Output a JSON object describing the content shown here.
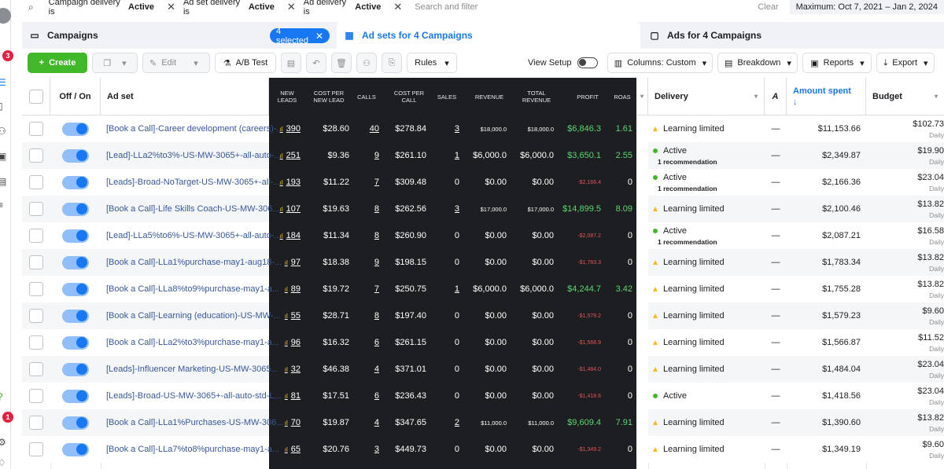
{
  "filters": {
    "chips": [
      {
        "prefix": "Campaign delivery is",
        "value": "Active"
      },
      {
        "prefix": "Ad set delivery is",
        "value": "Active"
      },
      {
        "prefix": "Ad delivery is",
        "value": "Active"
      }
    ],
    "search_placeholder": "Search and filter",
    "clear_label": "Clear",
    "date_range": "Maximum: Oct 7, 2021 – Jan 2, 2024"
  },
  "sidebar": {
    "badges": [
      "3",
      "1"
    ]
  },
  "tabs": {
    "campaigns": "Campaigns",
    "selected_pill": "4 selected",
    "adsets": "Ad sets for 4 Campaigns",
    "ads": "Ads for 4 Campaigns"
  },
  "toolbar": {
    "create": "Create",
    "edit": "Edit",
    "ab_test": "A/B Test",
    "rules": "Rules",
    "view_setup": "View Setup",
    "columns": "Columns: Custom",
    "breakdown": "Breakdown",
    "reports": "Reports",
    "export": "Export"
  },
  "columns": {
    "off_on": "Off / On",
    "ad_set": "Ad set",
    "new_leads": "NEW LEADS",
    "cost_per_new_lead": "COST PER NEW LEAD",
    "calls": "CALLS",
    "cost_per_call": "COST PER CALL",
    "sales": "SALES",
    "revenue": "REVENUE",
    "total_revenue": "TOTAL REVENUE",
    "profit": "PROFIT",
    "roas": "ROAS",
    "delivery": "Delivery",
    "attribution": "A",
    "amount_spent": "Amount spent",
    "budget": "Budget"
  },
  "colors": {
    "accent": "#1877f2",
    "create": "#42b72a",
    "positive": "#5ed672",
    "negative": "#e0555b",
    "dark_panel": "#1c1e21"
  },
  "rows": [
    {
      "name": "[Book a Call]-Career development (careers)-...",
      "leads": "390",
      "cpl": "$28.60",
      "calls": "40",
      "cpc": "$278.84",
      "sales": "3",
      "revenue": "$18,000.0",
      "total": "$18,000.0",
      "profit": "$6,846.3",
      "roas": "1.61",
      "delivery": "Learning limited",
      "rec": "",
      "attr": "—",
      "spent": "$11,153.66",
      "budget": "$102.73",
      "daily": "Daily"
    },
    {
      "name": "[Lead]-LLa2%to3%-US-MW-3065+-all-auto-...",
      "leads": "251",
      "cpl": "$9.36",
      "calls": "9",
      "cpc": "$261.10",
      "sales": "1",
      "revenue": "$6,000.0",
      "total": "$6,000.0",
      "profit": "$3,650.1",
      "roas": "2.55",
      "delivery": "Active",
      "rec": "1 recommendation",
      "attr": "—",
      "spent": "$2,349.87",
      "budget": "$19.90",
      "daily": "Daily"
    },
    {
      "name": "[Leads]-Broad-NoTarget-US-MW-3065+-all-...",
      "leads": "193",
      "cpl": "$11.22",
      "calls": "7",
      "cpc": "$309.48",
      "sales": "0",
      "revenue": "$0.00",
      "total": "$0.00",
      "profit": "-$2,166.4",
      "roas": "0",
      "delivery": "Active",
      "rec": "1 recommendation",
      "attr": "—",
      "spent": "$2,166.36",
      "budget": "$23.04",
      "daily": "Daily"
    },
    {
      "name": "[Book a Call]-Life Skills Coach-US-MW-306...",
      "leads": "107",
      "cpl": "$19.63",
      "calls": "8",
      "cpc": "$262.56",
      "sales": "3",
      "revenue": "$17,000.0",
      "total": "$17,000.0",
      "profit": "$14,899.5",
      "roas": "8.09",
      "delivery": "Learning limited",
      "rec": "",
      "attr": "—",
      "spent": "$2,100.46",
      "budget": "$13.82",
      "daily": "Daily"
    },
    {
      "name": "[Lead]-LLa5%to6%-US-MW-3065+-all-auto-...",
      "leads": "184",
      "cpl": "$11.34",
      "calls": "8",
      "cpc": "$260.90",
      "sales": "0",
      "revenue": "$0.00",
      "total": "$0.00",
      "profit": "-$2,087.2",
      "roas": "0",
      "delivery": "Active",
      "rec": "1 recommendation",
      "attr": "—",
      "spent": "$2,087.21",
      "budget": "$16.58",
      "daily": "Daily"
    },
    {
      "name": "[Book a Call]-LLa1%purchase-may1-aug18-...",
      "leads": "97",
      "cpl": "$18.38",
      "calls": "9",
      "cpc": "$198.15",
      "sales": "0",
      "revenue": "$0.00",
      "total": "$0.00",
      "profit": "-$1,783.3",
      "roas": "0",
      "delivery": "Learning limited",
      "rec": "",
      "attr": "—",
      "spent": "$1,783.34",
      "budget": "$13.82",
      "daily": "Daily"
    },
    {
      "name": "[Book a Call]-LLa8%to9%purchase-may1-a...",
      "leads": "89",
      "cpl": "$19.72",
      "calls": "7",
      "cpc": "$250.75",
      "sales": "1",
      "revenue": "$6,000.0",
      "total": "$6,000.0",
      "profit": "$4,244.7",
      "roas": "3.42",
      "delivery": "Learning limited",
      "rec": "",
      "attr": "—",
      "spent": "$1,755.28",
      "budget": "$13.82",
      "daily": "Daily"
    },
    {
      "name": "[Book a Call]-Learning (education)-US-MW-...",
      "leads": "55",
      "cpl": "$28.71",
      "calls": "8",
      "cpc": "$197.40",
      "sales": "0",
      "revenue": "$0.00",
      "total": "$0.00",
      "profit": "-$1,579.2",
      "roas": "0",
      "delivery": "Learning limited",
      "rec": "",
      "attr": "—",
      "spent": "$1,579.23",
      "budget": "$9.60",
      "daily": "Daily"
    },
    {
      "name": "[Book a Call]-LLa2%to3%purchase-may1-a...",
      "leads": "96",
      "cpl": "$16.32",
      "calls": "6",
      "cpc": "$261.15",
      "sales": "0",
      "revenue": "$0.00",
      "total": "$0.00",
      "profit": "-$1,566.9",
      "roas": "0",
      "delivery": "Learning limited",
      "rec": "",
      "attr": "—",
      "spent": "$1,566.87",
      "budget": "$11.52",
      "daily": "Daily"
    },
    {
      "name": "[Leads]-Influencer Marketing-US-MW-3065...",
      "leads": "32",
      "cpl": "$46.38",
      "calls": "4",
      "cpc": "$371.01",
      "sales": "0",
      "revenue": "$0.00",
      "total": "$0.00",
      "profit": "-$1,484.0",
      "roas": "0",
      "delivery": "Learning limited",
      "rec": "",
      "attr": "—",
      "spent": "$1,484.04",
      "budget": "$23.04",
      "daily": "Daily"
    },
    {
      "name": "[Leads]-Broad-US-MW-3065+-all-auto-std-L...",
      "leads": "81",
      "cpl": "$17.51",
      "calls": "6",
      "cpc": "$236.43",
      "sales": "0",
      "revenue": "$0.00",
      "total": "$0.00",
      "profit": "-$1,418.6",
      "roas": "0",
      "delivery": "Active",
      "rec": "",
      "attr": "—",
      "spent": "$1,418.56",
      "budget": "$23.04",
      "daily": "Daily"
    },
    {
      "name": "[Book a Call]-LLa1%Purchases-US-MW-306...",
      "leads": "70",
      "cpl": "$19.87",
      "calls": "4",
      "cpc": "$347.65",
      "sales": "2",
      "revenue": "$11,000.0",
      "total": "$11,000.0",
      "profit": "$9,609.4",
      "roas": "7.91",
      "delivery": "Learning limited",
      "rec": "",
      "attr": "—",
      "spent": "$1,390.60",
      "budget": "$13.82",
      "daily": "Daily"
    },
    {
      "name": "[Book a Call]-LLa7%to8%purchase-may1-a...",
      "leads": "65",
      "cpl": "$20.76",
      "calls": "3",
      "cpc": "$449.73",
      "sales": "0",
      "revenue": "$0.00",
      "total": "$0.00",
      "profit": "-$1,349.2",
      "roas": "0",
      "delivery": "Learning limited",
      "rec": "",
      "attr": "—",
      "spent": "$1,349.19",
      "budget": "$9.60",
      "daily": "Daily"
    }
  ]
}
